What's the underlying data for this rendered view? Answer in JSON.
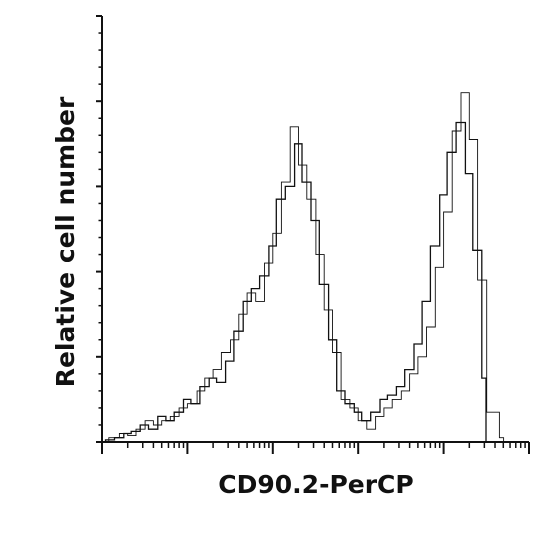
{
  "chart_data": {
    "type": "line",
    "title": "",
    "xlabel": "CD90.2-PerCP",
    "ylabel": "Relative cell number",
    "x_scale": "log",
    "xlim": [
      1,
      100000
    ],
    "ylim": [
      0,
      100
    ],
    "grid": false,
    "legend": "none",
    "x_tick_labels": [],
    "y_tick_labels": [],
    "y_major_ticks": [
      0,
      20,
      40,
      60,
      80,
      100
    ],
    "y_minor_ticks_per_major": 4,
    "series": [
      {
        "color": "#111111",
        "x": [
          1.1,
          1.4,
          1.8,
          2.2,
          2.8,
          3.5,
          4.5,
          5.6,
          7,
          9,
          11,
          14,
          18,
          22,
          28,
          35,
          45,
          56,
          70,
          90,
          110,
          140,
          180,
          220,
          280,
          350,
          450,
          560,
          700,
          900,
          1100,
          1400,
          1800,
          2200,
          2800,
          3500,
          4500,
          5600,
          7000,
          9000,
          11000,
          14000,
          18000,
          22000,
          28000
        ],
        "y": [
          0.5,
          1,
          2,
          2.5,
          4,
          3,
          6,
          5,
          7,
          10,
          9,
          13,
          15,
          14,
          19,
          26,
          33,
          36,
          39,
          46,
          57,
          60,
          70,
          61,
          52,
          37,
          24,
          12,
          9,
          7,
          5,
          7,
          10,
          11,
          13,
          17,
          23,
          33,
          46,
          58,
          68,
          75,
          63,
          45,
          15
        ]
      },
      {
        "color": "#111111",
        "x": [
          1.2,
          1.6,
          2,
          2.5,
          3.2,
          4,
          5,
          6.3,
          8,
          10,
          13,
          16,
          20,
          25,
          32,
          40,
          50,
          63,
          80,
          100,
          126,
          160,
          200,
          250,
          320,
          400,
          500,
          630,
          800,
          1000,
          1260,
          1600,
          2000,
          2500,
          3200,
          4000,
          5000,
          6300,
          8000,
          10000,
          12600,
          16000,
          20000,
          25000,
          32000,
          45000
        ],
        "y": [
          1,
          2,
          1.5,
          3,
          5,
          4,
          5,
          6,
          8,
          9,
          12,
          15,
          17,
          21,
          24,
          30,
          35,
          33,
          42,
          49,
          61,
          74,
          65,
          57,
          44,
          31,
          21,
          10,
          8,
          5,
          3,
          6,
          8,
          10,
          12,
          16,
          20,
          27,
          41,
          54,
          73,
          82,
          71,
          38,
          7,
          1
        ]
      }
    ]
  }
}
